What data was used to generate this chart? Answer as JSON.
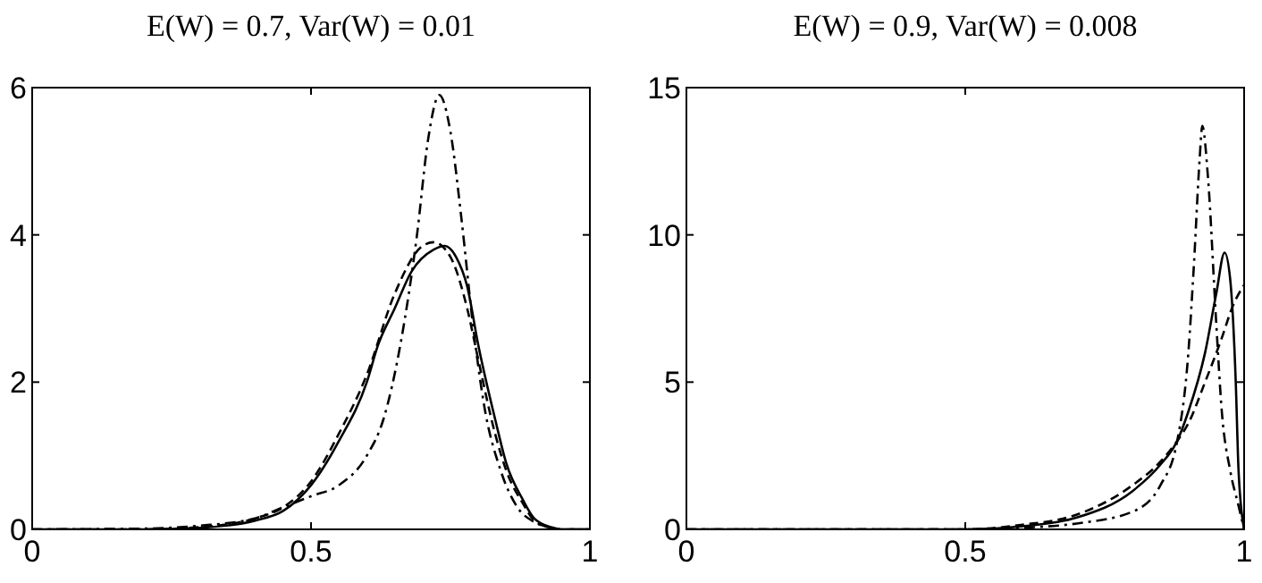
{
  "chart_data": [
    {
      "type": "line",
      "title": "E(W) = 0.7, Var(W) = 0.01",
      "xlim": [
        0,
        1
      ],
      "xticks": [
        0,
        0.5,
        1
      ],
      "ylim": [
        0,
        6
      ],
      "yticks": [
        0,
        2,
        4,
        6
      ],
      "grid": false,
      "series": [
        {
          "color": "#000000",
          "line_style": "solid",
          "x": [
            0,
            0.2,
            0.3,
            0.4,
            0.45,
            0.5,
            0.55,
            0.6,
            0.62,
            0.65,
            0.68,
            0.72,
            0.74,
            0.76,
            0.78,
            0.8,
            0.83,
            0.85,
            0.88,
            0.9,
            0.93,
            0.95,
            1
          ],
          "values": [
            0,
            0,
            0.02,
            0.12,
            0.25,
            0.6,
            1.2,
            2.0,
            2.5,
            3.0,
            3.5,
            3.8,
            3.85,
            3.7,
            3.3,
            2.5,
            1.5,
            0.9,
            0.4,
            0.15,
            0.03,
            0,
            0
          ]
        },
        {
          "color": "#000000",
          "line_style": "dashed",
          "x": [
            0,
            0.2,
            0.3,
            0.4,
            0.45,
            0.5,
            0.55,
            0.6,
            0.65,
            0.7,
            0.72,
            0.75,
            0.78,
            0.8,
            0.83,
            0.85,
            0.88,
            0.9,
            0.93,
            0.95,
            1
          ],
          "values": [
            0,
            0,
            0.03,
            0.15,
            0.3,
            0.65,
            1.3,
            2.1,
            3.2,
            3.85,
            3.9,
            3.7,
            3.0,
            2.3,
            1.3,
            0.8,
            0.35,
            0.12,
            0.02,
            0,
            0
          ]
        },
        {
          "color": "#000000",
          "line_style": "dashdot",
          "x": [
            0,
            0.2,
            0.3,
            0.4,
            0.45,
            0.5,
            0.55,
            0.6,
            0.63,
            0.66,
            0.69,
            0.71,
            0.73,
            0.75,
            0.77,
            0.79,
            0.81,
            0.84,
            0.87,
            0.9,
            0.93,
            0.95,
            1
          ],
          "values": [
            0,
            0.01,
            0.05,
            0.15,
            0.3,
            0.45,
            0.6,
            1.0,
            1.5,
            2.5,
            4.0,
            5.3,
            5.9,
            5.4,
            4.2,
            2.8,
            1.7,
            0.8,
            0.3,
            0.1,
            0.02,
            0,
            0
          ]
        }
      ]
    },
    {
      "type": "line",
      "title": "E(W) = 0.9, Var(W) = 0.008",
      "xlim": [
        0,
        1
      ],
      "xticks": [
        0,
        0.5,
        1
      ],
      "ylim": [
        0,
        15
      ],
      "yticks": [
        0,
        5,
        10,
        15
      ],
      "grid": false,
      "series": [
        {
          "color": "#000000",
          "line_style": "solid",
          "x": [
            0,
            0.5,
            0.6,
            0.7,
            0.8,
            0.85,
            0.88,
            0.9,
            0.93,
            0.95,
            0.965,
            0.975,
            0.985,
            0.99,
            1
          ],
          "values": [
            0,
            0,
            0.1,
            0.4,
            1.3,
            2.2,
            3.0,
            4.0,
            6.0,
            8.0,
            9.4,
            8.5,
            5,
            2,
            0
          ]
        },
        {
          "color": "#000000",
          "line_style": "dashed",
          "x": [
            0,
            0.5,
            0.6,
            0.7,
            0.8,
            0.85,
            0.88,
            0.9,
            0.93,
            0.96,
            0.98,
            1
          ],
          "values": [
            0,
            0,
            0.15,
            0.5,
            1.5,
            2.3,
            3.0,
            3.6,
            5.0,
            6.5,
            7.6,
            8.3
          ]
        },
        {
          "color": "#000000",
          "line_style": "dashdot",
          "x": [
            0,
            0.5,
            0.6,
            0.7,
            0.8,
            0.85,
            0.88,
            0.9,
            0.91,
            0.92,
            0.925,
            0.935,
            0.95,
            0.96,
            0.975,
            0.99,
            1
          ],
          "values": [
            0,
            0,
            0.05,
            0.2,
            0.6,
            1.5,
            3.0,
            6.0,
            9.0,
            12.5,
            13.7,
            12.0,
            7.0,
            4.0,
            2.0,
            0.8,
            0
          ]
        }
      ]
    }
  ]
}
